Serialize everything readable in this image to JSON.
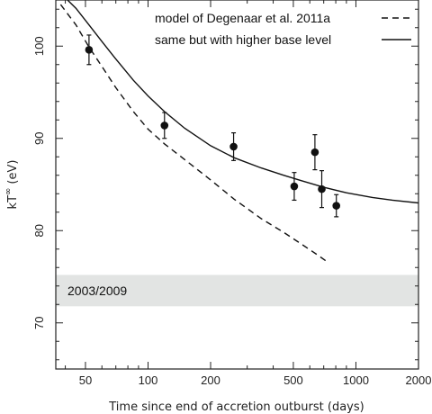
{
  "chart_data": {
    "type": "scatter",
    "xlabel": "Time since end of accretion outburst (days)",
    "ylabel_main": "kT",
    "ylabel_sup": "∞",
    "ylabel_unit": "(eV)",
    "xscale": "log",
    "xlim": [
      36,
      2000
    ],
    "ylim": [
      65,
      105
    ],
    "xticks": [
      50,
      100,
      200,
      500,
      1000,
      2000
    ],
    "xtick_labels": [
      "50",
      "100",
      "200",
      "500",
      "1000",
      "2000"
    ],
    "yticks": [
      70,
      80,
      90,
      100
    ],
    "ytick_labels": [
      "70",
      "80",
      "90",
      "100"
    ],
    "legend_position": "top-right",
    "points": [
      {
        "x": 52,
        "y": 99.6,
        "yerr": 1.6
      },
      {
        "x": 120,
        "y": 91.4,
        "yerr": 1.4
      },
      {
        "x": 258,
        "y": 89.1,
        "yerr": 1.5
      },
      {
        "x": 505,
        "y": 84.8,
        "yerr": 1.5
      },
      {
        "x": 635,
        "y": 88.5,
        "yerr": 1.9
      },
      {
        "x": 685,
        "y": 84.5,
        "yerr": 2.0
      },
      {
        "x": 805,
        "y": 82.7,
        "yerr": 1.2
      }
    ],
    "series": [
      {
        "name": "model of Degenaar et al. 2011a",
        "style": "dashed",
        "x": [
          38,
          45,
          52,
          60,
          70,
          85,
          100,
          120,
          150,
          200,
          260,
          350,
          450,
          550,
          650,
          740
        ],
        "y": [
          104.5,
          102.3,
          99.9,
          97.8,
          95.5,
          92.9,
          91.0,
          89.4,
          87.7,
          85.5,
          83.4,
          81.3,
          79.8,
          78.5,
          77.4,
          76.5
        ]
      },
      {
        "name": "same but with higher base level",
        "style": "solid",
        "x": [
          41,
          45,
          52,
          60,
          70,
          85,
          100,
          120,
          150,
          200,
          260,
          350,
          450,
          550,
          700,
          900,
          1200,
          1500,
          2000
        ],
        "y": [
          105,
          104.1,
          102.3,
          100.5,
          98.6,
          96.3,
          94.6,
          92.9,
          91.1,
          89.2,
          87.9,
          86.8,
          86.0,
          85.4,
          84.7,
          84.1,
          83.6,
          83.3,
          83.0
        ]
      }
    ],
    "band": {
      "label": "2003/2009",
      "y0": 71.8,
      "y1": 75.2,
      "color": "#e2e4e3"
    },
    "colors": {
      "axis": "#222222",
      "marker": "#111111",
      "line": "#111111"
    }
  }
}
